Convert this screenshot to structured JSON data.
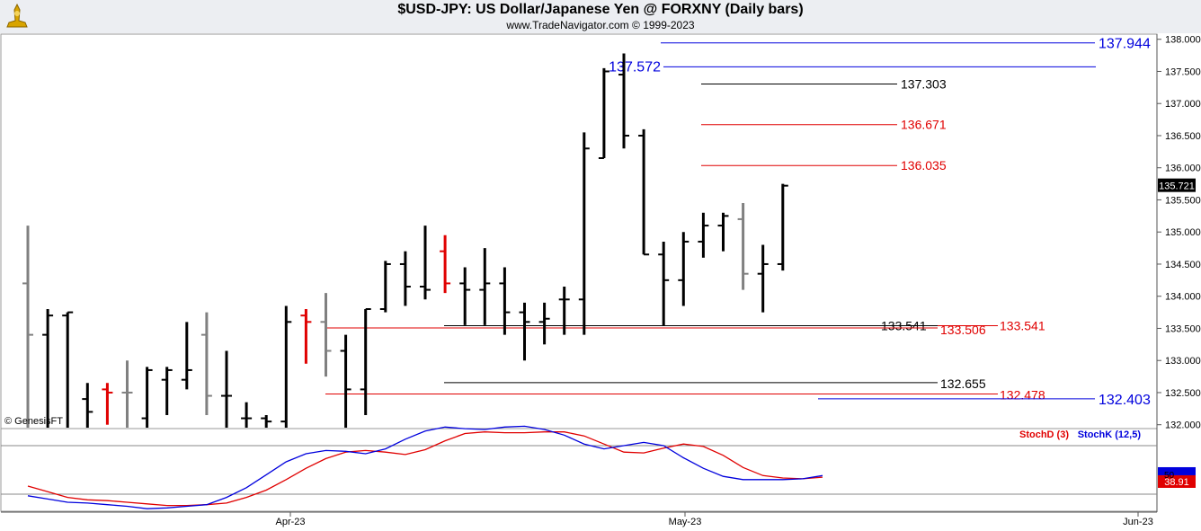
{
  "header": {
    "title": "$USD-JPY:  US Dollar/Japanese Yen @ FORXNY  (Daily bars)",
    "subtitle": "www.TradeNavigator.com © 1999-2023",
    "logo_icon": "trade-navigator-logo-icon"
  },
  "price_panel": {
    "copyright": "© GenesisFT",
    "last_price_label": "135.721",
    "y_ticks": [
      "138.000",
      "137.500",
      "137.000",
      "136.500",
      "136.000",
      "135.500",
      "135.000",
      "134.500",
      "134.000",
      "133.500",
      "133.000",
      "132.500",
      "132.000"
    ],
    "colors": {
      "up_black": "#000000",
      "gray": "#808080",
      "red": "#e00000",
      "blue": "#0000dd"
    }
  },
  "stoch_panel": {
    "legend_d": "StochD (3)",
    "legend_k": "StochK (12,5)",
    "tick_50": "50",
    "last_value_label": "38.91",
    "colors": {
      "d": "#e00000",
      "k": "#0000dd",
      "last_bg": "#e00000"
    }
  },
  "x_axis": {
    "labels": [
      "Apr-23",
      "May-23",
      "Jun-23"
    ]
  },
  "levels": [
    {
      "label": "137.944",
      "color": "#0000dd"
    },
    {
      "label": "137.572",
      "color": "#0000dd"
    },
    {
      "label": "137.303",
      "color": "#000000"
    },
    {
      "label": "136.671",
      "color": "#e00000"
    },
    {
      "label": "136.035",
      "color": "#e00000"
    },
    {
      "label": "133.541",
      "color": "#000000"
    },
    {
      "label": "133.506",
      "color": "#e00000"
    },
    {
      "label": "133.541",
      "color": "#e00000"
    },
    {
      "label": "132.655",
      "color": "#000000"
    },
    {
      "label": "132.478",
      "color": "#e00000"
    },
    {
      "label": "132.403",
      "color": "#0000dd"
    }
  ],
  "chart_data": {
    "type": "ohlc",
    "title": "$USD-JPY:  US Dollar/Japanese Yen @ FORXNY  (Daily bars)",
    "xlabel": "",
    "ylabel": "",
    "ylim": [
      131.94,
      138.08
    ],
    "x_tick_labels": [
      "Apr-23",
      "May-23",
      "Jun-23"
    ],
    "bars": [
      {
        "color": "gray",
        "open": 134.2,
        "high": 135.1,
        "low": 131.9,
        "close": 133.4
      },
      {
        "color": "black",
        "open": 133.4,
        "high": 133.8,
        "low": 131.9,
        "close": 133.7
      },
      {
        "color": "black",
        "open": 133.7,
        "high": 133.75,
        "low": 131.9,
        "close": 133.75
      },
      {
        "color": "black",
        "open": 132.4,
        "high": 132.65,
        "low": 131.9,
        "close": 132.2
      },
      {
        "color": "red",
        "open": 132.55,
        "high": 132.65,
        "low": 132.0,
        "close": 132.5
      },
      {
        "color": "gray",
        "open": 132.5,
        "high": 133.0,
        "low": 131.9,
        "close": 132.5
      },
      {
        "color": "black",
        "open": 132.1,
        "high": 132.9,
        "low": 131.9,
        "close": 132.85
      },
      {
        "color": "black",
        "open": 132.7,
        "high": 132.9,
        "low": 132.15,
        "close": 132.85
      },
      {
        "color": "black",
        "open": 132.7,
        "high": 133.6,
        "low": 132.55,
        "close": 132.85
      },
      {
        "color": "gray",
        "open": 133.4,
        "high": 133.75,
        "low": 132.15,
        "close": 132.45
      },
      {
        "color": "black",
        "open": 132.45,
        "high": 133.15,
        "low": 131.9,
        "close": 132.45
      },
      {
        "color": "black",
        "open": 132.1,
        "high": 132.35,
        "low": 131.9,
        "close": 132.1
      },
      {
        "color": "black",
        "open": 132.1,
        "high": 132.15,
        "low": 131.9,
        "close": 132.05
      },
      {
        "color": "black",
        "open": 132.05,
        "high": 133.85,
        "low": 131.9,
        "close": 133.6
      },
      {
        "color": "red",
        "open": 133.7,
        "high": 133.8,
        "low": 132.95,
        "close": 133.6
      },
      {
        "color": "gray",
        "open": 133.6,
        "high": 134.05,
        "low": 132.75,
        "close": 133.15
      },
      {
        "color": "black",
        "open": 133.15,
        "high": 133.4,
        "low": 131.95,
        "close": 132.55
      },
      {
        "color": "black",
        "open": 132.55,
        "high": 133.8,
        "low": 132.15,
        "close": 133.8
      },
      {
        "color": "black",
        "open": 133.8,
        "high": 134.55,
        "low": 133.75,
        "close": 134.5
      },
      {
        "color": "black",
        "open": 134.5,
        "high": 134.7,
        "low": 133.85,
        "close": 134.15
      },
      {
        "color": "black",
        "open": 134.15,
        "high": 135.1,
        "low": 133.95,
        "close": 134.1
      },
      {
        "color": "red",
        "open": 134.7,
        "high": 134.95,
        "low": 134.05,
        "close": 134.2
      },
      {
        "color": "black",
        "open": 134.2,
        "high": 134.45,
        "low": 133.55,
        "close": 134.1
      },
      {
        "color": "black",
        "open": 134.1,
        "high": 134.75,
        "low": 133.55,
        "close": 134.2
      },
      {
        "color": "black",
        "open": 134.2,
        "high": 134.45,
        "low": 133.4,
        "close": 133.75
      },
      {
        "color": "black",
        "open": 133.75,
        "high": 133.9,
        "low": 133.0,
        "close": 133.6
      },
      {
        "color": "black",
        "open": 133.6,
        "high": 133.9,
        "low": 133.25,
        "close": 133.65
      },
      {
        "color": "black",
        "open": 133.95,
        "high": 134.15,
        "low": 133.4,
        "close": 133.95
      },
      {
        "color": "black",
        "open": 133.95,
        "high": 136.55,
        "low": 133.4,
        "close": 136.3
      },
      {
        "color": "black",
        "open": 136.15,
        "high": 137.55,
        "low": 136.15,
        "close": 137.5
      },
      {
        "color": "black",
        "open": 137.45,
        "high": 137.78,
        "low": 136.3,
        "close": 136.5
      },
      {
        "color": "black",
        "open": 136.5,
        "high": 136.6,
        "low": 134.65,
        "close": 134.65
      },
      {
        "color": "black",
        "open": 134.65,
        "high": 134.85,
        "low": 133.54,
        "close": 134.25
      },
      {
        "color": "black",
        "open": 134.25,
        "high": 135.0,
        "low": 133.85,
        "close": 134.85
      },
      {
        "color": "black",
        "open": 134.85,
        "high": 135.3,
        "low": 134.6,
        "close": 135.1
      },
      {
        "color": "black",
        "open": 135.1,
        "high": 135.3,
        "low": 134.7,
        "close": 135.25
      },
      {
        "color": "gray",
        "open": 135.2,
        "high": 135.45,
        "low": 134.1,
        "close": 134.35
      },
      {
        "color": "black",
        "open": 134.35,
        "high": 134.8,
        "low": 133.75,
        "close": 134.5
      },
      {
        "color": "black",
        "open": 134.5,
        "high": 135.75,
        "low": 134.4,
        "close": 135.721
      }
    ],
    "levels": [
      {
        "value": 137.944
      },
      {
        "value": 137.572
      },
      {
        "value": 137.303
      },
      {
        "value": 136.671
      },
      {
        "value": 136.035
      },
      {
        "value": 133.541
      },
      {
        "value": 133.506
      },
      {
        "value": 133.541
      },
      {
        "value": 132.655
      },
      {
        "value": 132.478
      },
      {
        "value": 132.403
      }
    ],
    "last_price": 135.721,
    "stochastic": {
      "ylim": [
        0,
        100
      ],
      "reference_lines": [
        80,
        20
      ],
      "series": [
        {
          "name": "StochD (3)",
          "values": [
            30,
            23,
            16,
            13,
            12,
            10,
            8,
            6,
            6,
            7,
            9,
            16,
            25,
            38,
            52,
            64,
            72,
            74,
            72,
            69,
            75,
            86,
            95,
            97,
            96,
            96,
            97,
            97,
            92,
            82,
            72,
            71,
            77,
            82,
            79,
            68,
            53,
            43,
            40,
            39,
            41
          ]
        },
        {
          "name": "StochK (12,5)",
          "values": [
            18,
            14,
            10,
            9,
            7,
            5,
            2,
            3,
            5,
            7,
            16,
            28,
            44,
            60,
            70,
            74,
            73,
            70,
            76,
            88,
            98,
            103,
            101,
            100,
            103,
            104,
            100,
            93,
            82,
            76,
            80,
            84,
            80,
            65,
            52,
            42,
            38,
            38,
            38,
            39,
            43
          ]
        }
      ],
      "last_value": 38.91
    }
  }
}
